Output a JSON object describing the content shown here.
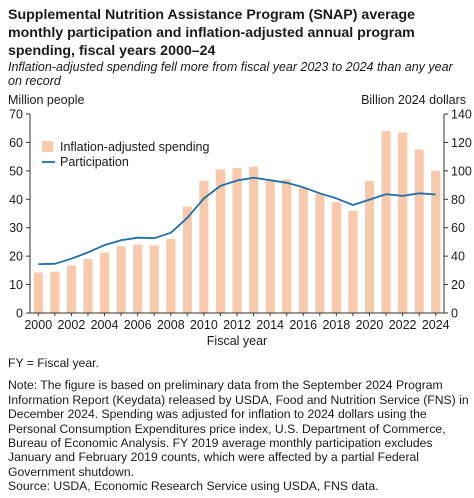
{
  "title": "Supplemental Nutrition Assistance Program (SNAP) average monthly participation and inflation-adjusted annual program spending, fiscal years 2000–24",
  "subtitle": "Inflation-adjusted spending fell more from fiscal year 2023 to 2024 than any year on record",
  "notes": {
    "fy": "FY = Fiscal year.",
    "note": "Note: The figure is based on preliminary data from the September 2024 Program Information Report (Keydata) released by USDA, Food and Nutrition Service (FNS) in December 2024. Spending was adjusted for inflation to 2024 dollars using the Personal Consumption Expenditures price index, U.S. Department of Commerce, Bureau of Economic Analysis. FY 2019 average monthly participation excludes January and February 2019 counts, which were affected by a partial Federal Government shutdown.",
    "source": "Source: USDA, Economic Research Service using USDA, FNS data."
  },
  "chart_data": {
    "type": "bar",
    "xlabel": "Fiscal year",
    "ylabel_left": "Million people",
    "ylabel_right": "Billion 2024 dollars",
    "ylim_left": [
      0,
      70
    ],
    "ylim_right": [
      0,
      140
    ],
    "yticks_left": [
      "0",
      "10",
      "20",
      "30",
      "40",
      "50",
      "60",
      "70"
    ],
    "yticks_right": [
      "0",
      "20",
      "40",
      "60",
      "80",
      "100",
      "120",
      "140"
    ],
    "x": [
      2000,
      2001,
      2002,
      2003,
      2004,
      2005,
      2006,
      2007,
      2008,
      2009,
      2010,
      2011,
      2012,
      2013,
      2014,
      2015,
      2016,
      2017,
      2018,
      2019,
      2020,
      2021,
      2022,
      2023,
      2024
    ],
    "xtick_labels": [
      "2000",
      "2002",
      "2004",
      "2006",
      "2008",
      "2010",
      "2012",
      "2014",
      "2016",
      "2018",
      "2020",
      "2022",
      "2024"
    ],
    "legend_position": "top-left",
    "grid": false,
    "colors": {
      "bars": "#f8c9ab",
      "line": "#1f6fa8",
      "axis": "#333333"
    },
    "series": [
      {
        "name": "Inflation-adjusted spending",
        "kind": "bar",
        "axis": "right",
        "values": [
          28.5,
          29,
          33.5,
          38,
          42.5,
          47,
          48,
          47.5,
          52,
          75,
          93,
          101,
          102,
          103,
          93,
          94,
          88,
          84,
          78,
          72,
          93,
          128,
          127,
          115,
          100
        ]
      },
      {
        "name": "Participation",
        "kind": "line",
        "axis": "left",
        "values": [
          17.2,
          17.3,
          19.1,
          21.3,
          23.9,
          25.6,
          26.5,
          26.3,
          28.2,
          33.5,
          40.3,
          44.7,
          46.6,
          47.6,
          46.7,
          45.8,
          44.2,
          42.1,
          40.3,
          38.0,
          39.9,
          41.8,
          41.2,
          42.1,
          41.7
        ]
      }
    ]
  }
}
